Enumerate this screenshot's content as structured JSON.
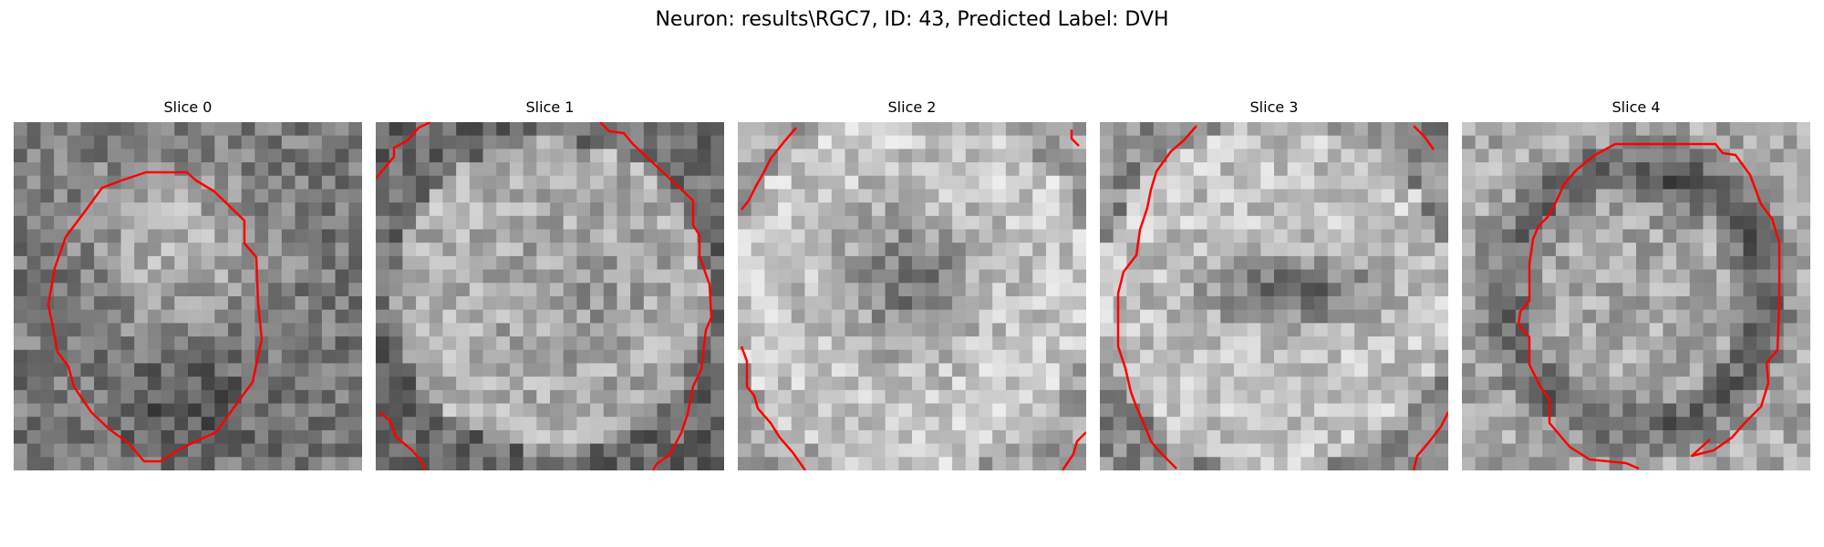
{
  "figure": {
    "title": "Neuron: results\\RGC7, ID: 43, Predicted Label: DVH"
  },
  "panels": [
    {
      "title": "Slice 0"
    },
    {
      "title": "Slice 1"
    },
    {
      "title": "Slice 2"
    },
    {
      "title": "Slice 3"
    },
    {
      "title": "Slice 4"
    }
  ],
  "colors": {
    "contour": "#ff0000",
    "background": "#ffffff"
  }
}
